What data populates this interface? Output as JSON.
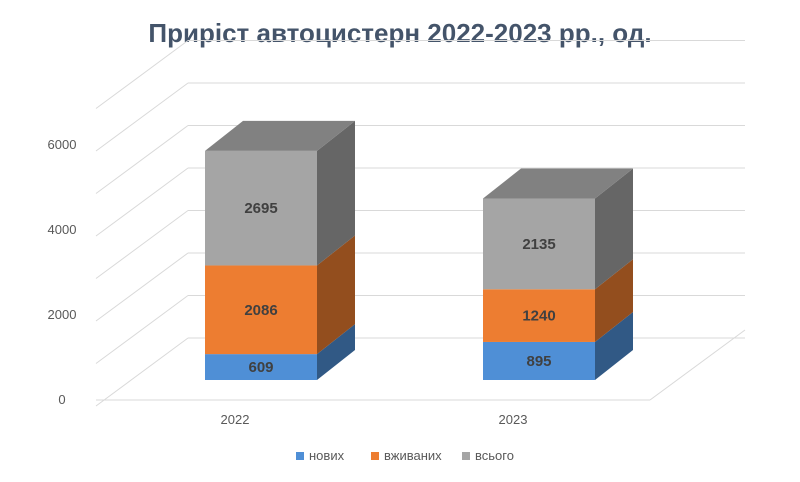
{
  "chart_data": {
    "type": "bar",
    "stacked": true,
    "style": "3d-column",
    "title": "Приріст автоцистерн 2022-2023 рр., од.",
    "categories": [
      "2022",
      "2023"
    ],
    "series": [
      {
        "name": "нових",
        "values": [
          609,
          895
        ],
        "color": "#4f8fd6"
      },
      {
        "name": "вживаних",
        "values": [
          2086,
          1240
        ],
        "color": "#ed7d31"
      },
      {
        "name": "всього",
        "values": [
          2695,
          2135
        ],
        "color": "#a5a5a5"
      }
    ],
    "y_ticks": [
      "0",
      "2000",
      "4000",
      "6000"
    ],
    "ylim": [
      0,
      7000
    ],
    "grid": true,
    "legend": "bottom"
  }
}
